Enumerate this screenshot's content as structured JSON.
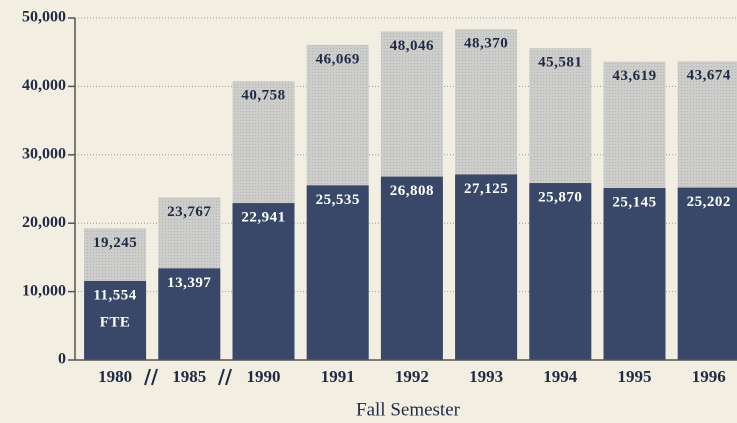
{
  "chart_data": {
    "type": "overlap-bar",
    "x_label": "Fall Semester",
    "categories": [
      "1980",
      "1985",
      "1990",
      "1991",
      "1992",
      "1993",
      "1994",
      "1995",
      "1996"
    ],
    "series": [
      {
        "color": "#c9c9c7",
        "label_color": "#1f2a44",
        "values": [
          19245,
          23767,
          40758,
          46069,
          48046,
          48370,
          45581,
          43619,
          43674
        ],
        "value_labels": [
          "19,245",
          "23,767",
          "40,758",
          "46,069",
          "48,046",
          "48,370",
          "45,581",
          "43,619",
          "43,674"
        ]
      },
      {
        "name": "FTE",
        "color": "#394868",
        "label_color": "#ffffff",
        "values": [
          11554,
          13397,
          22941,
          25535,
          26808,
          27125,
          25870,
          25145,
          25202
        ],
        "value_labels": [
          "11,554",
          "13,397",
          "22,941",
          "25,535",
          "26,808",
          "27,125",
          "25,870",
          "25,145",
          "25,202"
        ]
      }
    ],
    "ylim": [
      0,
      50000
    ],
    "yticks": [
      0,
      {
        "value": 10000,
        "label": "10,000"
      },
      {
        "value": 20000,
        "label": "20,000"
      },
      {
        "value": 30000,
        "label": "30,000"
      },
      {
        "value": 40000,
        "label": "40,000"
      },
      {
        "value": 50000,
        "label": "50,000"
      }
    ],
    "grid": true
  }
}
